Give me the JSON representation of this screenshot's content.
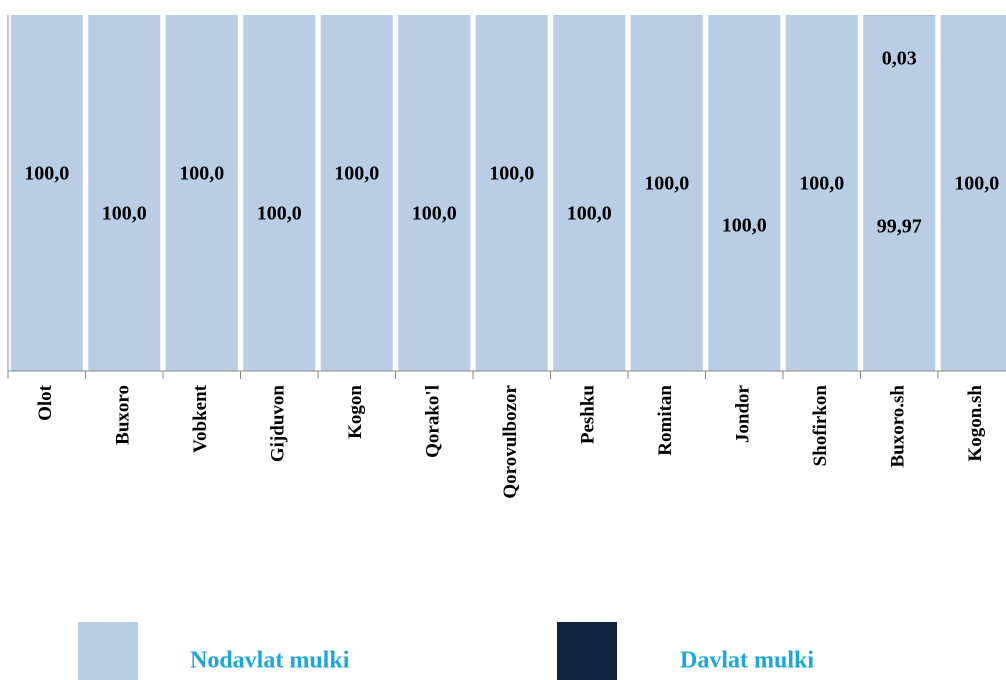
{
  "chart_data": {
    "type": "stacked_bar",
    "categories": [
      "Olot",
      "Buxoro",
      "Vobkent",
      "Gijduvon",
      "Kogon",
      "Qorako'l",
      "Qorovulbozor",
      "Peshku",
      "Romitan",
      "Jondor",
      "Shofirkon",
      "Buxoro.sh",
      "Kogon.sh"
    ],
    "series": [
      {
        "name": "Nodavlat mulki",
        "color": "#b9cde5",
        "values": [
          100,
          100,
          100,
          100,
          100,
          100,
          100,
          100,
          100,
          100,
          100,
          99.97,
          100
        ],
        "value_labels": [
          "100,0",
          "100,0",
          "100,0",
          "100,0",
          "100,0",
          "100,0",
          "100,0",
          "100,0",
          "100,0",
          "100,0",
          "100,0",
          "99,97",
          "100,0"
        ]
      },
      {
        "name": "Davlat mulki",
        "color": "#10243f",
        "values": [
          null,
          null,
          null,
          null,
          null,
          null,
          null,
          null,
          null,
          null,
          null,
          0.03,
          null
        ],
        "value_labels": [
          null,
          null,
          null,
          null,
          null,
          null,
          null,
          null,
          null,
          null,
          null,
          "0,03",
          null
        ]
      }
    ],
    "ylim": [
      0,
      100
    ]
  }
}
